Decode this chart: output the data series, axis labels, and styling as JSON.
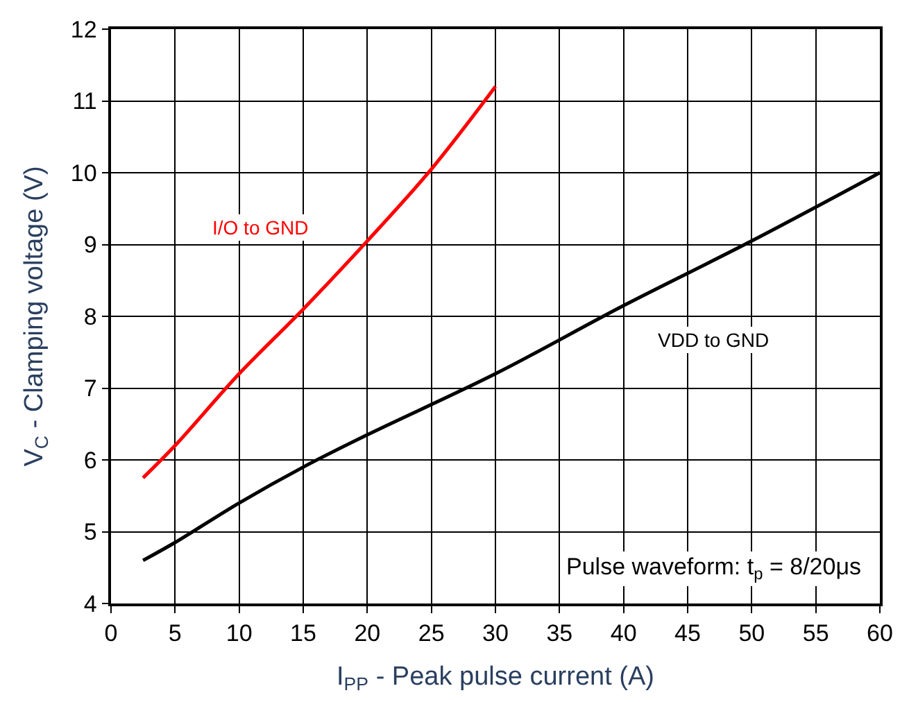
{
  "chart_data": {
    "type": "line",
    "xlabel": "I$_{PP}$ - Peak pulse current (A)",
    "ylabel": "V$_{C}$ - Clamping voltage (V)",
    "xlim": [
      0,
      60
    ],
    "xticks": [
      0,
      5,
      10,
      15,
      20,
      25,
      30,
      35,
      40,
      45,
      50,
      55,
      60
    ],
    "ylim": [
      4,
      12
    ],
    "yticks": [
      4,
      5,
      6,
      7,
      8,
      9,
      10,
      11,
      12
    ],
    "grid": true,
    "legend": false,
    "marker": "none",
    "line_style": "solid",
    "series": [
      {
        "name": "I/O to GND",
        "color": "#ff0000",
        "x": [
          2.5,
          5,
          10,
          15,
          20,
          25,
          30
        ],
        "values": [
          5.75,
          6.2,
          7.2,
          8.1,
          9.05,
          10.05,
          11.2
        ]
      },
      {
        "name": "VDD to GND",
        "color": "#000000",
        "x": [
          2.5,
          5,
          10,
          15,
          20,
          30,
          40,
          50,
          60
        ],
        "values": [
          4.6,
          4.85,
          5.4,
          5.9,
          6.35,
          7.2,
          8.15,
          9.05,
          10.0
        ]
      }
    ],
    "annotations": [
      "Pulse waveform: t$_{p}$ = 8/20μs"
    ]
  }
}
